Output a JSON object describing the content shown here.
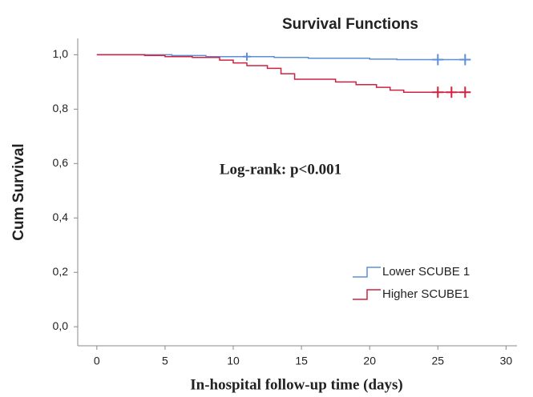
{
  "chart_data": {
    "type": "km",
    "title": "Survival Functions",
    "xlabel": "In-hospital follow-up time (days)",
    "ylabel": "Cum Survival",
    "annotation": "Log-rank: p<0.001",
    "xlim": [
      -1.4,
      30.8
    ],
    "ylim": [
      -0.07,
      1.06
    ],
    "xticks": [
      0,
      5,
      10,
      15,
      20,
      25,
      30
    ],
    "yticks": [
      {
        "value": 0,
        "label": "0,0"
      },
      {
        "value": 0.2,
        "label": "0,2"
      },
      {
        "value": 0.4,
        "label": "0,4"
      },
      {
        "value": 0.6,
        "label": "0,6"
      },
      {
        "value": 0.8,
        "label": "0,8"
      },
      {
        "value": 1,
        "label": "1,0"
      }
    ],
    "series": [
      {
        "name": "Lower SCUBE 1",
        "color": "#5b8fd9",
        "x": [
          0,
          5.5,
          8,
          13,
          15.5,
          20,
          22,
          27
        ],
        "values": [
          1,
          0.997,
          0.993,
          0.99,
          0.987,
          0.984,
          0.982,
          0.982
        ],
        "censor_x": [
          11,
          25,
          27
        ],
        "censor_values": [
          0.993,
          0.982,
          0.982
        ]
      },
      {
        "name": "Higher SCUBE1",
        "color": "#d0213f",
        "x": [
          0,
          3.5,
          5,
          7,
          9,
          10,
          11,
          12.5,
          13.5,
          14.5,
          17.5,
          19,
          20.5,
          21.5,
          22.5,
          27
        ],
        "values": [
          1,
          0.997,
          0.993,
          0.99,
          0.98,
          0.97,
          0.96,
          0.95,
          0.93,
          0.91,
          0.9,
          0.89,
          0.88,
          0.87,
          0.862,
          0.862
        ],
        "censor_x": [
          25,
          26,
          27
        ],
        "censor_values": [
          0.862,
          0.862,
          0.862
        ]
      }
    ]
  }
}
